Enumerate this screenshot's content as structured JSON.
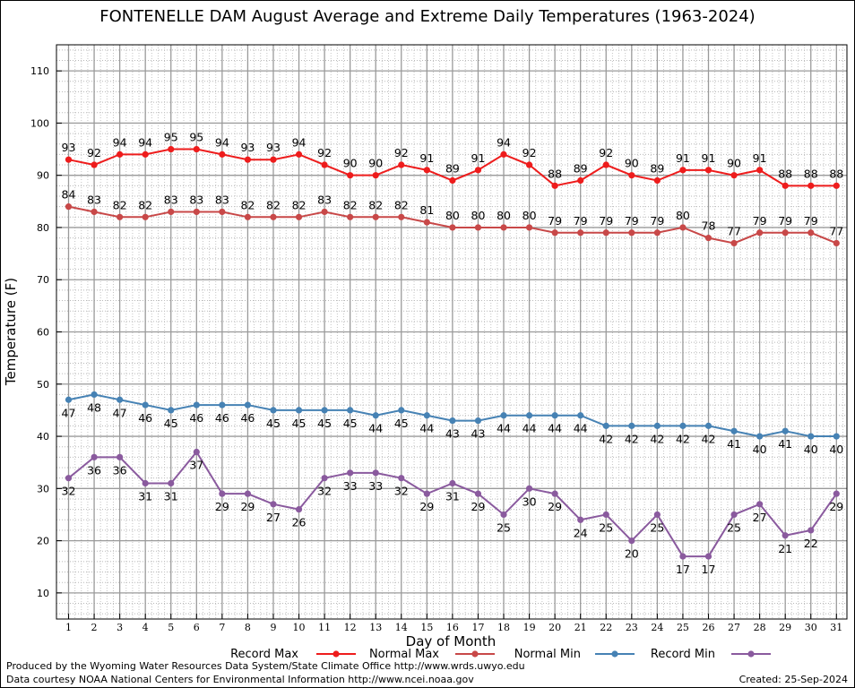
{
  "chart_data": {
    "type": "line",
    "title": "FONTENELLE DAM August Average and Extreme Daily Temperatures (1963-2024)",
    "xlabel": "Day of Month",
    "ylabel": "Temperature (F)",
    "ylim": [
      5,
      115
    ],
    "y_ticks": [
      "10",
      "20",
      "30",
      "40",
      "50",
      "60",
      "70",
      "80",
      "90",
      "100",
      "110"
    ],
    "x": [
      1,
      2,
      3,
      4,
      5,
      6,
      7,
      8,
      9,
      10,
      11,
      12,
      13,
      14,
      15,
      16,
      17,
      18,
      19,
      20,
      21,
      22,
      23,
      24,
      25,
      26,
      27,
      28,
      29,
      30,
      31
    ],
    "x_tick_labels": [
      "1",
      "2",
      "3",
      "4",
      "5",
      "6",
      "7",
      "8",
      "9",
      "10",
      "11",
      "12",
      "13",
      "14",
      "15",
      "16",
      "17",
      "18",
      "19",
      "20",
      "21",
      "22",
      "23",
      "24",
      "25",
      "26",
      "27",
      "28",
      "29",
      "30",
      "31"
    ],
    "grid": true,
    "legend_position": "bottom",
    "series": [
      {
        "name": "Record Max",
        "color": "#ee1c1c",
        "label_position": "above",
        "values": [
          93,
          92,
          94,
          94,
          95,
          95,
          94,
          93,
          93,
          94,
          92,
          90,
          90,
          92,
          91,
          89,
          91,
          94,
          92,
          88,
          89,
          92,
          90,
          89,
          91,
          91,
          90,
          91,
          88,
          88,
          88
        ]
      },
      {
        "name": "Normal Max",
        "color": "#c84848",
        "label_position": "above",
        "values": [
          84,
          83,
          82,
          82,
          83,
          83,
          83,
          82,
          82,
          82,
          83,
          82,
          82,
          82,
          81,
          80,
          80,
          80,
          80,
          79,
          79,
          79,
          79,
          79,
          80,
          78,
          77,
          79,
          79,
          79,
          77
        ]
      },
      {
        "name": "Normal Min",
        "color": "#4682b4",
        "label_position": "below",
        "values": [
          47,
          48,
          47,
          46,
          45,
          46,
          46,
          46,
          45,
          45,
          45,
          45,
          44,
          45,
          44,
          43,
          43,
          44,
          44,
          44,
          44,
          42,
          42,
          42,
          42,
          42,
          41,
          40,
          41,
          40,
          40
        ]
      },
      {
        "name": "Record Min",
        "color": "#8a5a9e",
        "label_position": "below",
        "values": [
          32,
          36,
          36,
          31,
          31,
          37,
          29,
          29,
          27,
          26,
          32,
          33,
          33,
          32,
          29,
          31,
          29,
          25,
          30,
          29,
          24,
          25,
          20,
          25,
          17,
          17,
          25,
          27,
          21,
          22,
          29
        ]
      }
    ]
  },
  "footer": {
    "produced_by": "Produced by the Wyoming Water Resources Data System/State Climate Office http://www.wrds.uwyo.edu",
    "data_courtesy": "Data courtesy NOAA National Centers for Environmental Information http://www.ncei.noaa.gov",
    "created": "Created:  25-Sep-2024"
  }
}
